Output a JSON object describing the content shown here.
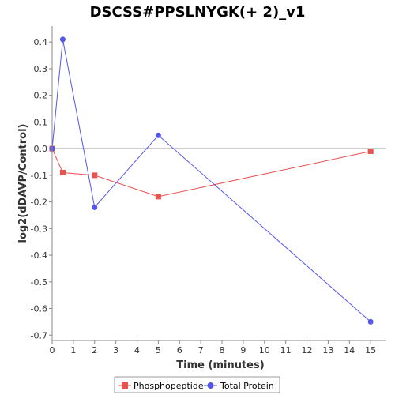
{
  "chart_data": {
    "type": "line",
    "title": "DSCSS#PPSLNYGK(+ 2)_v1",
    "xlabel": "Time (minutes)",
    "ylabel": "log2(dDAVP/Control)",
    "xlim": [
      0,
      15.7
    ],
    "ylim": [
      -0.72,
      0.46
    ],
    "xticks": [
      0,
      1,
      2,
      3,
      4,
      5,
      6,
      7,
      8,
      9,
      10,
      11,
      12,
      13,
      14,
      15
    ],
    "xtick_labels": [
      "0",
      "1",
      "2",
      "3",
      "4",
      "5",
      "6",
      "7",
      "8",
      "9",
      "10",
      "11",
      "12",
      "13",
      "14",
      "15"
    ],
    "yticks": [
      0.4,
      0.3,
      0.2,
      0.1,
      0.0,
      -0.1,
      -0.2,
      -0.3,
      -0.4,
      -0.5,
      -0.6,
      -0.7
    ],
    "ytick_labels": [
      "0.4",
      "0.3",
      "0.2",
      "0.1",
      "0.0",
      "-0.1",
      "-0.2",
      "-0.3",
      "-0.4",
      "-0.5",
      "-0.6",
      "-0.7"
    ],
    "grid": false,
    "zero_line": true,
    "legend_position": "bottom",
    "series": [
      {
        "name": "Phosphopeptide",
        "color": "#e8524f",
        "marker": "square",
        "x": [
          0,
          0.5,
          2,
          5,
          15
        ],
        "y": [
          0.0,
          -0.09,
          -0.1,
          -0.18,
          -0.01
        ]
      },
      {
        "name": "Total Protein",
        "color": "#5555e8",
        "marker": "circle",
        "x": [
          0,
          0.5,
          2,
          5,
          15
        ],
        "y": [
          0.0,
          0.41,
          -0.22,
          0.05,
          -0.65
        ]
      }
    ]
  }
}
